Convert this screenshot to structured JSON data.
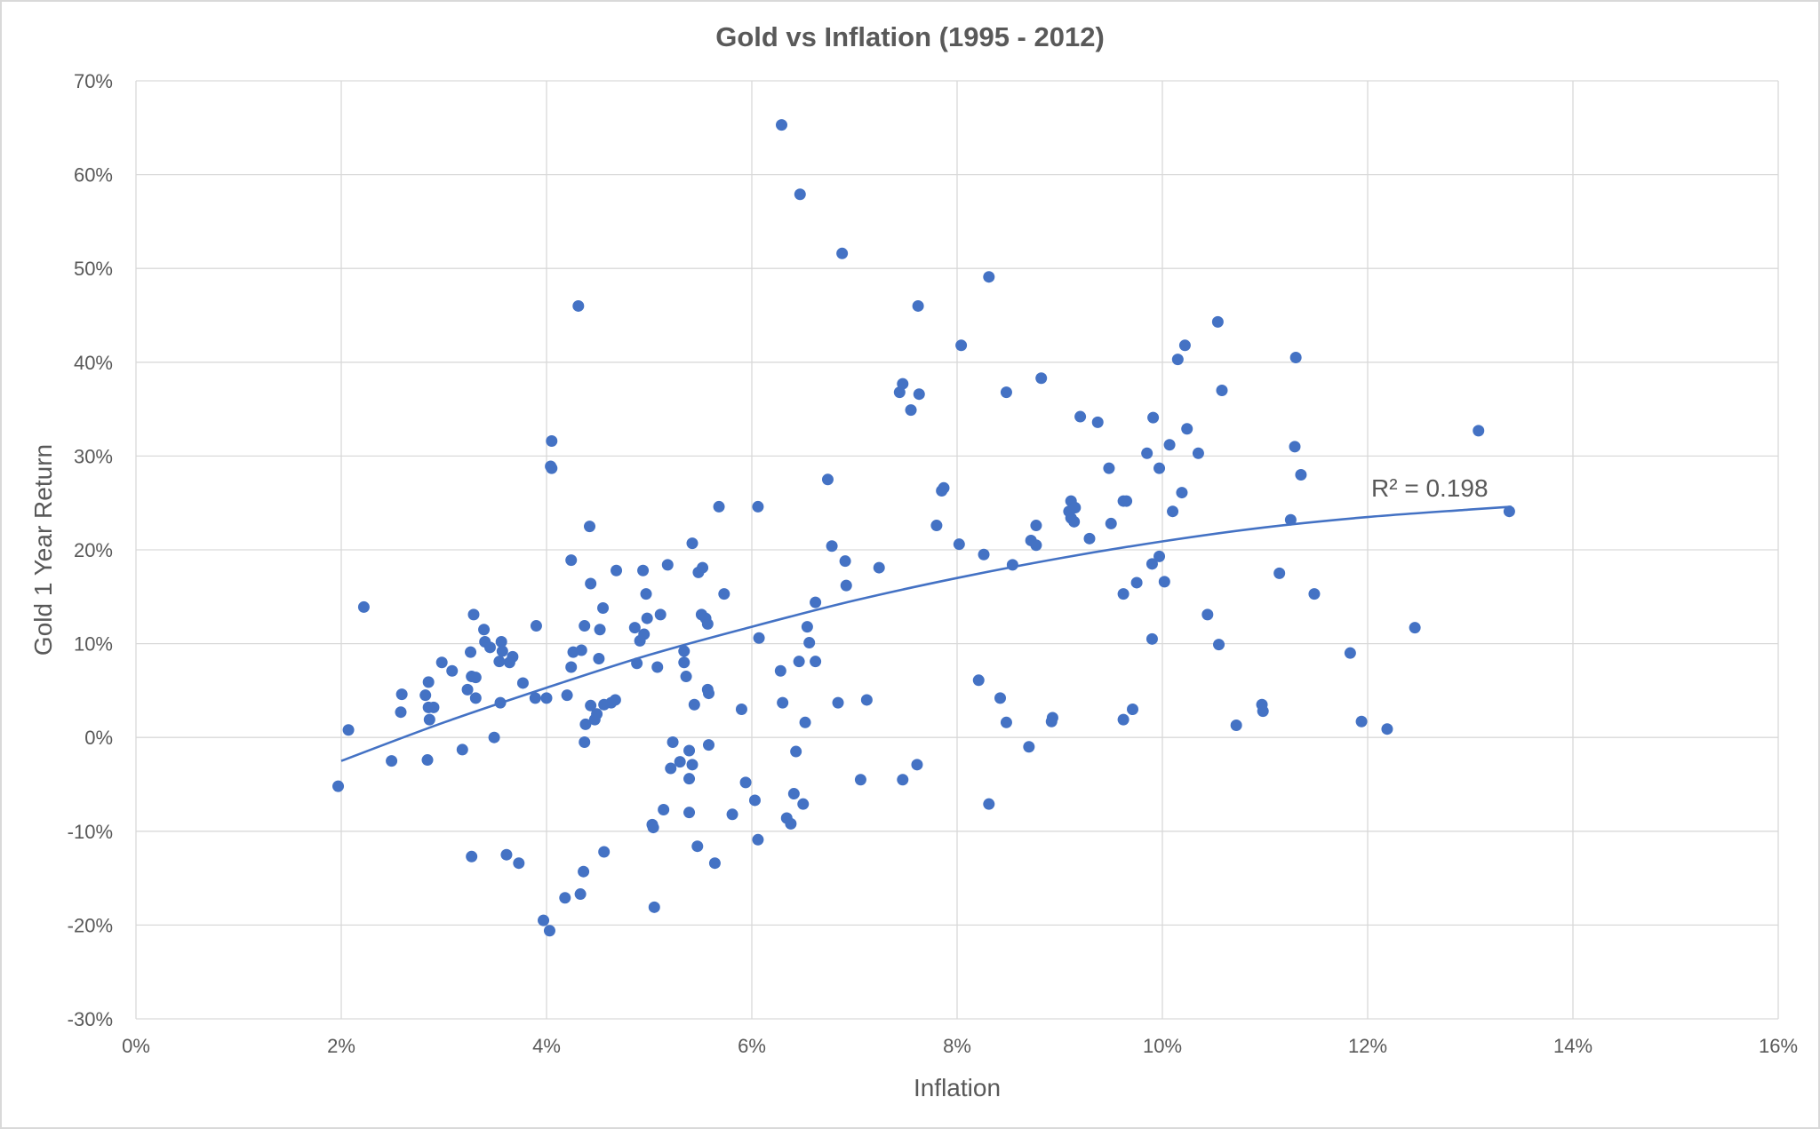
{
  "chart_data": {
    "type": "scatter",
    "title": "Gold vs Inflation (1995 - 2012)",
    "xlabel": "Inflation",
    "ylabel": "Gold 1 Year Return",
    "xlim": [
      0,
      16
    ],
    "ylim": [
      -30,
      70
    ],
    "x_ticks": [
      "0%",
      "2%",
      "4%",
      "6%",
      "8%",
      "10%",
      "12%",
      "14%",
      "16%"
    ],
    "y_ticks": [
      "70%",
      "60%",
      "50%",
      "40%",
      "30%",
      "20%",
      "10%",
      "0%",
      "-10%",
      "-20%",
      "-30%"
    ],
    "grid": true,
    "legend": "none",
    "colors": {
      "points": "#4472C4",
      "trendline": "#4472C4",
      "grid": "#d9d9d9",
      "text": "#595959"
    },
    "trendline": {
      "type": "polynomial",
      "label": "R² = 0.198",
      "x": [
        2,
        3,
        4,
        5,
        6,
        7,
        8,
        9,
        10,
        11,
        12,
        13,
        13.4
      ],
      "y": [
        -2.5,
        1.6,
        5.3,
        8.8,
        11.8,
        14.6,
        17.0,
        19.1,
        20.9,
        22.4,
        23.5,
        24.3,
        24.6
      ]
    },
    "points": [
      [
        1.97,
        -5.2
      ],
      [
        2.07,
        0.8
      ],
      [
        2.22,
        13.9
      ],
      [
        2.49,
        -2.5
      ],
      [
        2.59,
        4.6
      ],
      [
        2.58,
        2.7
      ],
      [
        2.82,
        4.5
      ],
      [
        2.85,
        5.9
      ],
      [
        2.84,
        -2.4
      ],
      [
        2.85,
        3.2
      ],
      [
        2.86,
        1.9
      ],
      [
        2.9,
        3.2
      ],
      [
        2.98,
        8.0
      ],
      [
        3.08,
        7.1
      ],
      [
        3.18,
        -1.3
      ],
      [
        3.23,
        5.1
      ],
      [
        3.26,
        9.1
      ],
      [
        3.27,
        -12.7
      ],
      [
        3.29,
        13.1
      ],
      [
        3.27,
        6.5
      ],
      [
        3.31,
        6.4
      ],
      [
        3.31,
        4.2
      ],
      [
        3.39,
        11.5
      ],
      [
        3.4,
        10.2
      ],
      [
        3.45,
        9.6
      ],
      [
        3.49,
        0.0
      ],
      [
        3.54,
        8.1
      ],
      [
        3.55,
        3.7
      ],
      [
        3.56,
        10.2
      ],
      [
        3.57,
        9.2
      ],
      [
        3.61,
        -12.5
      ],
      [
        3.64,
        8.0
      ],
      [
        3.67,
        8.6
      ],
      [
        3.73,
        -13.4
      ],
      [
        3.77,
        5.8
      ],
      [
        3.9,
        11.9
      ],
      [
        3.89,
        4.2
      ],
      [
        3.97,
        -19.5
      ],
      [
        4.0,
        4.2
      ],
      [
        4.03,
        -20.6
      ],
      [
        4.05,
        31.6
      ],
      [
        4.04,
        28.9
      ],
      [
        4.05,
        28.7
      ],
      [
        4.18,
        -17.1
      ],
      [
        4.2,
        4.5
      ],
      [
        4.24,
        18.9
      ],
      [
        4.24,
        7.5
      ],
      [
        4.26,
        9.1
      ],
      [
        4.31,
        46.0
      ],
      [
        4.33,
        -16.7
      ],
      [
        4.34,
        9.3
      ],
      [
        4.36,
        -14.3
      ],
      [
        4.37,
        11.9
      ],
      [
        4.37,
        -0.5
      ],
      [
        4.38,
        1.4
      ],
      [
        4.42,
        22.5
      ],
      [
        4.43,
        16.4
      ],
      [
        4.43,
        3.4
      ],
      [
        4.47,
        1.9
      ],
      [
        4.49,
        2.5
      ],
      [
        4.51,
        8.4
      ],
      [
        4.52,
        11.5
      ],
      [
        4.55,
        13.8
      ],
      [
        4.56,
        -12.2
      ],
      [
        4.56,
        3.5
      ],
      [
        4.63,
        3.7
      ],
      [
        4.67,
        4.0
      ],
      [
        4.68,
        17.8
      ],
      [
        4.86,
        11.7
      ],
      [
        4.88,
        7.9
      ],
      [
        4.91,
        10.3
      ],
      [
        4.94,
        17.8
      ],
      [
        4.95,
        11.0
      ],
      [
        4.97,
        15.3
      ],
      [
        4.98,
        12.7
      ],
      [
        5.03,
        -9.3
      ],
      [
        5.04,
        -9.6
      ],
      [
        5.05,
        -18.1
      ],
      [
        5.08,
        7.5
      ],
      [
        5.11,
        13.1
      ],
      [
        5.14,
        -7.7
      ],
      [
        5.18,
        18.4
      ],
      [
        5.21,
        -3.3
      ],
      [
        5.23,
        -0.5
      ],
      [
        5.3,
        -2.6
      ],
      [
        5.34,
        8.0
      ],
      [
        5.34,
        9.2
      ],
      [
        5.36,
        6.5
      ],
      [
        5.39,
        -8.0
      ],
      [
        5.39,
        -1.4
      ],
      [
        5.39,
        -4.4
      ],
      [
        5.42,
        -2.9
      ],
      [
        5.42,
        20.7
      ],
      [
        5.44,
        3.5
      ],
      [
        5.47,
        -11.6
      ],
      [
        5.48,
        17.6
      ],
      [
        5.52,
        18.1
      ],
      [
        5.51,
        13.1
      ],
      [
        5.55,
        12.7
      ],
      [
        5.57,
        12.1
      ],
      [
        5.57,
        5.1
      ],
      [
        5.58,
        4.7
      ],
      [
        5.58,
        -0.8
      ],
      [
        5.64,
        -13.4
      ],
      [
        5.68,
        24.6
      ],
      [
        5.73,
        15.3
      ],
      [
        5.81,
        -8.2
      ],
      [
        5.9,
        3.0
      ],
      [
        5.94,
        -4.8
      ],
      [
        6.03,
        -6.7
      ],
      [
        6.06,
        24.6
      ],
      [
        6.06,
        -10.9
      ],
      [
        6.07,
        10.6
      ],
      [
        6.28,
        7.1
      ],
      [
        6.3,
        3.7
      ],
      [
        6.29,
        65.3
      ],
      [
        6.34,
        -8.6
      ],
      [
        6.38,
        -9.2
      ],
      [
        6.41,
        -6.0
      ],
      [
        6.43,
        -1.5
      ],
      [
        6.46,
        8.1
      ],
      [
        6.47,
        57.9
      ],
      [
        6.5,
        -7.1
      ],
      [
        6.52,
        1.6
      ],
      [
        6.54,
        11.8
      ],
      [
        6.56,
        10.1
      ],
      [
        6.62,
        14.4
      ],
      [
        6.62,
        8.1
      ],
      [
        6.74,
        27.5
      ],
      [
        6.78,
        20.4
      ],
      [
        6.84,
        3.7
      ],
      [
        6.88,
        51.6
      ],
      [
        6.91,
        18.8
      ],
      [
        6.92,
        16.2
      ],
      [
        7.06,
        -4.5
      ],
      [
        7.12,
        4.0
      ],
      [
        7.24,
        18.1
      ],
      [
        7.44,
        36.8
      ],
      [
        7.47,
        37.7
      ],
      [
        7.47,
        -4.5
      ],
      [
        7.55,
        34.9
      ],
      [
        7.62,
        46.0
      ],
      [
        7.63,
        36.6
      ],
      [
        7.61,
        -2.9
      ],
      [
        7.8,
        22.6
      ],
      [
        7.85,
        26.3
      ],
      [
        7.87,
        26.6
      ],
      [
        8.02,
        20.6
      ],
      [
        8.04,
        41.8
      ],
      [
        8.21,
        6.1
      ],
      [
        8.26,
        19.5
      ],
      [
        8.31,
        49.1
      ],
      [
        8.31,
        -7.1
      ],
      [
        8.42,
        4.2
      ],
      [
        8.48,
        36.8
      ],
      [
        8.48,
        1.6
      ],
      [
        8.54,
        18.4
      ],
      [
        8.7,
        -1.0
      ],
      [
        8.72,
        21.0
      ],
      [
        8.77,
        22.6
      ],
      [
        8.77,
        20.5
      ],
      [
        8.82,
        38.3
      ],
      [
        8.92,
        1.7
      ],
      [
        8.93,
        2.1
      ],
      [
        9.09,
        24.1
      ],
      [
        9.11,
        25.2
      ],
      [
        9.11,
        23.4
      ],
      [
        9.14,
        23.0
      ],
      [
        9.15,
        24.5
      ],
      [
        9.2,
        34.2
      ],
      [
        9.29,
        21.2
      ],
      [
        9.37,
        33.6
      ],
      [
        9.48,
        28.7
      ],
      [
        9.5,
        22.8
      ],
      [
        9.62,
        25.2
      ],
      [
        9.65,
        25.2
      ],
      [
        9.62,
        15.3
      ],
      [
        9.62,
        1.9
      ],
      [
        9.71,
        3.0
      ],
      [
        9.75,
        16.5
      ],
      [
        9.85,
        30.3
      ],
      [
        9.9,
        18.5
      ],
      [
        9.9,
        10.5
      ],
      [
        9.91,
        34.1
      ],
      [
        9.97,
        19.3
      ],
      [
        9.97,
        28.7
      ],
      [
        10.02,
        16.6
      ],
      [
        10.07,
        31.2
      ],
      [
        10.1,
        24.1
      ],
      [
        10.15,
        40.3
      ],
      [
        10.19,
        26.1
      ],
      [
        10.22,
        41.8
      ],
      [
        10.24,
        32.9
      ],
      [
        10.35,
        30.3
      ],
      [
        10.44,
        13.1
      ],
      [
        10.54,
        44.3
      ],
      [
        10.55,
        9.9
      ],
      [
        10.58,
        37.0
      ],
      [
        10.72,
        1.3
      ],
      [
        10.97,
        3.5
      ],
      [
        10.98,
        2.8
      ],
      [
        11.14,
        17.5
      ],
      [
        11.25,
        23.2
      ],
      [
        11.29,
        31.0
      ],
      [
        11.3,
        40.5
      ],
      [
        11.35,
        28.0
      ],
      [
        11.48,
        15.3
      ],
      [
        11.83,
        9.0
      ],
      [
        11.94,
        1.7
      ],
      [
        12.19,
        0.9
      ],
      [
        12.46,
        11.7
      ],
      [
        13.08,
        32.7
      ],
      [
        13.38,
        24.1
      ]
    ]
  }
}
